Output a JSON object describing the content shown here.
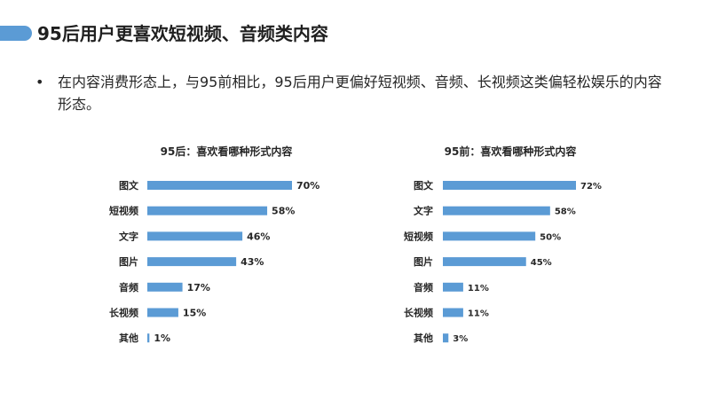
{
  "slide": {
    "title": "95后用户更喜欢短视频、音频类内容",
    "bullet": "在内容消费形态上，与95前相比，95后用户更偏好短视频、音频、长视频这类偏轻松娱乐的内容形态。"
  },
  "colors": {
    "bar": "#5b9bd5",
    "accent": "#5b9bd5"
  },
  "chart_data": [
    {
      "type": "bar",
      "orientation": "horizontal",
      "title": "95后：喜欢看哪种形式内容",
      "categories": [
        "图文",
        "短视频",
        "文字",
        "图片",
        "音频",
        "长视频",
        "其他"
      ],
      "values": [
        70,
        58,
        46,
        43,
        17,
        15,
        1
      ],
      "value_labels": [
        "70%",
        "58%",
        "46%",
        "43%",
        "17%",
        "15%",
        "1%"
      ],
      "unit": "%"
    },
    {
      "type": "bar",
      "orientation": "horizontal",
      "title": "95前：喜欢看哪种形式内容",
      "categories": [
        "图文",
        "文字",
        "短视频",
        "图片",
        "音频",
        "长视频",
        "其他"
      ],
      "values": [
        72,
        58,
        50,
        45,
        11,
        11,
        3
      ],
      "value_labels": [
        "72%",
        "58%",
        "50%",
        "45%",
        "11%",
        "11%",
        "3%"
      ],
      "unit": "%"
    }
  ]
}
